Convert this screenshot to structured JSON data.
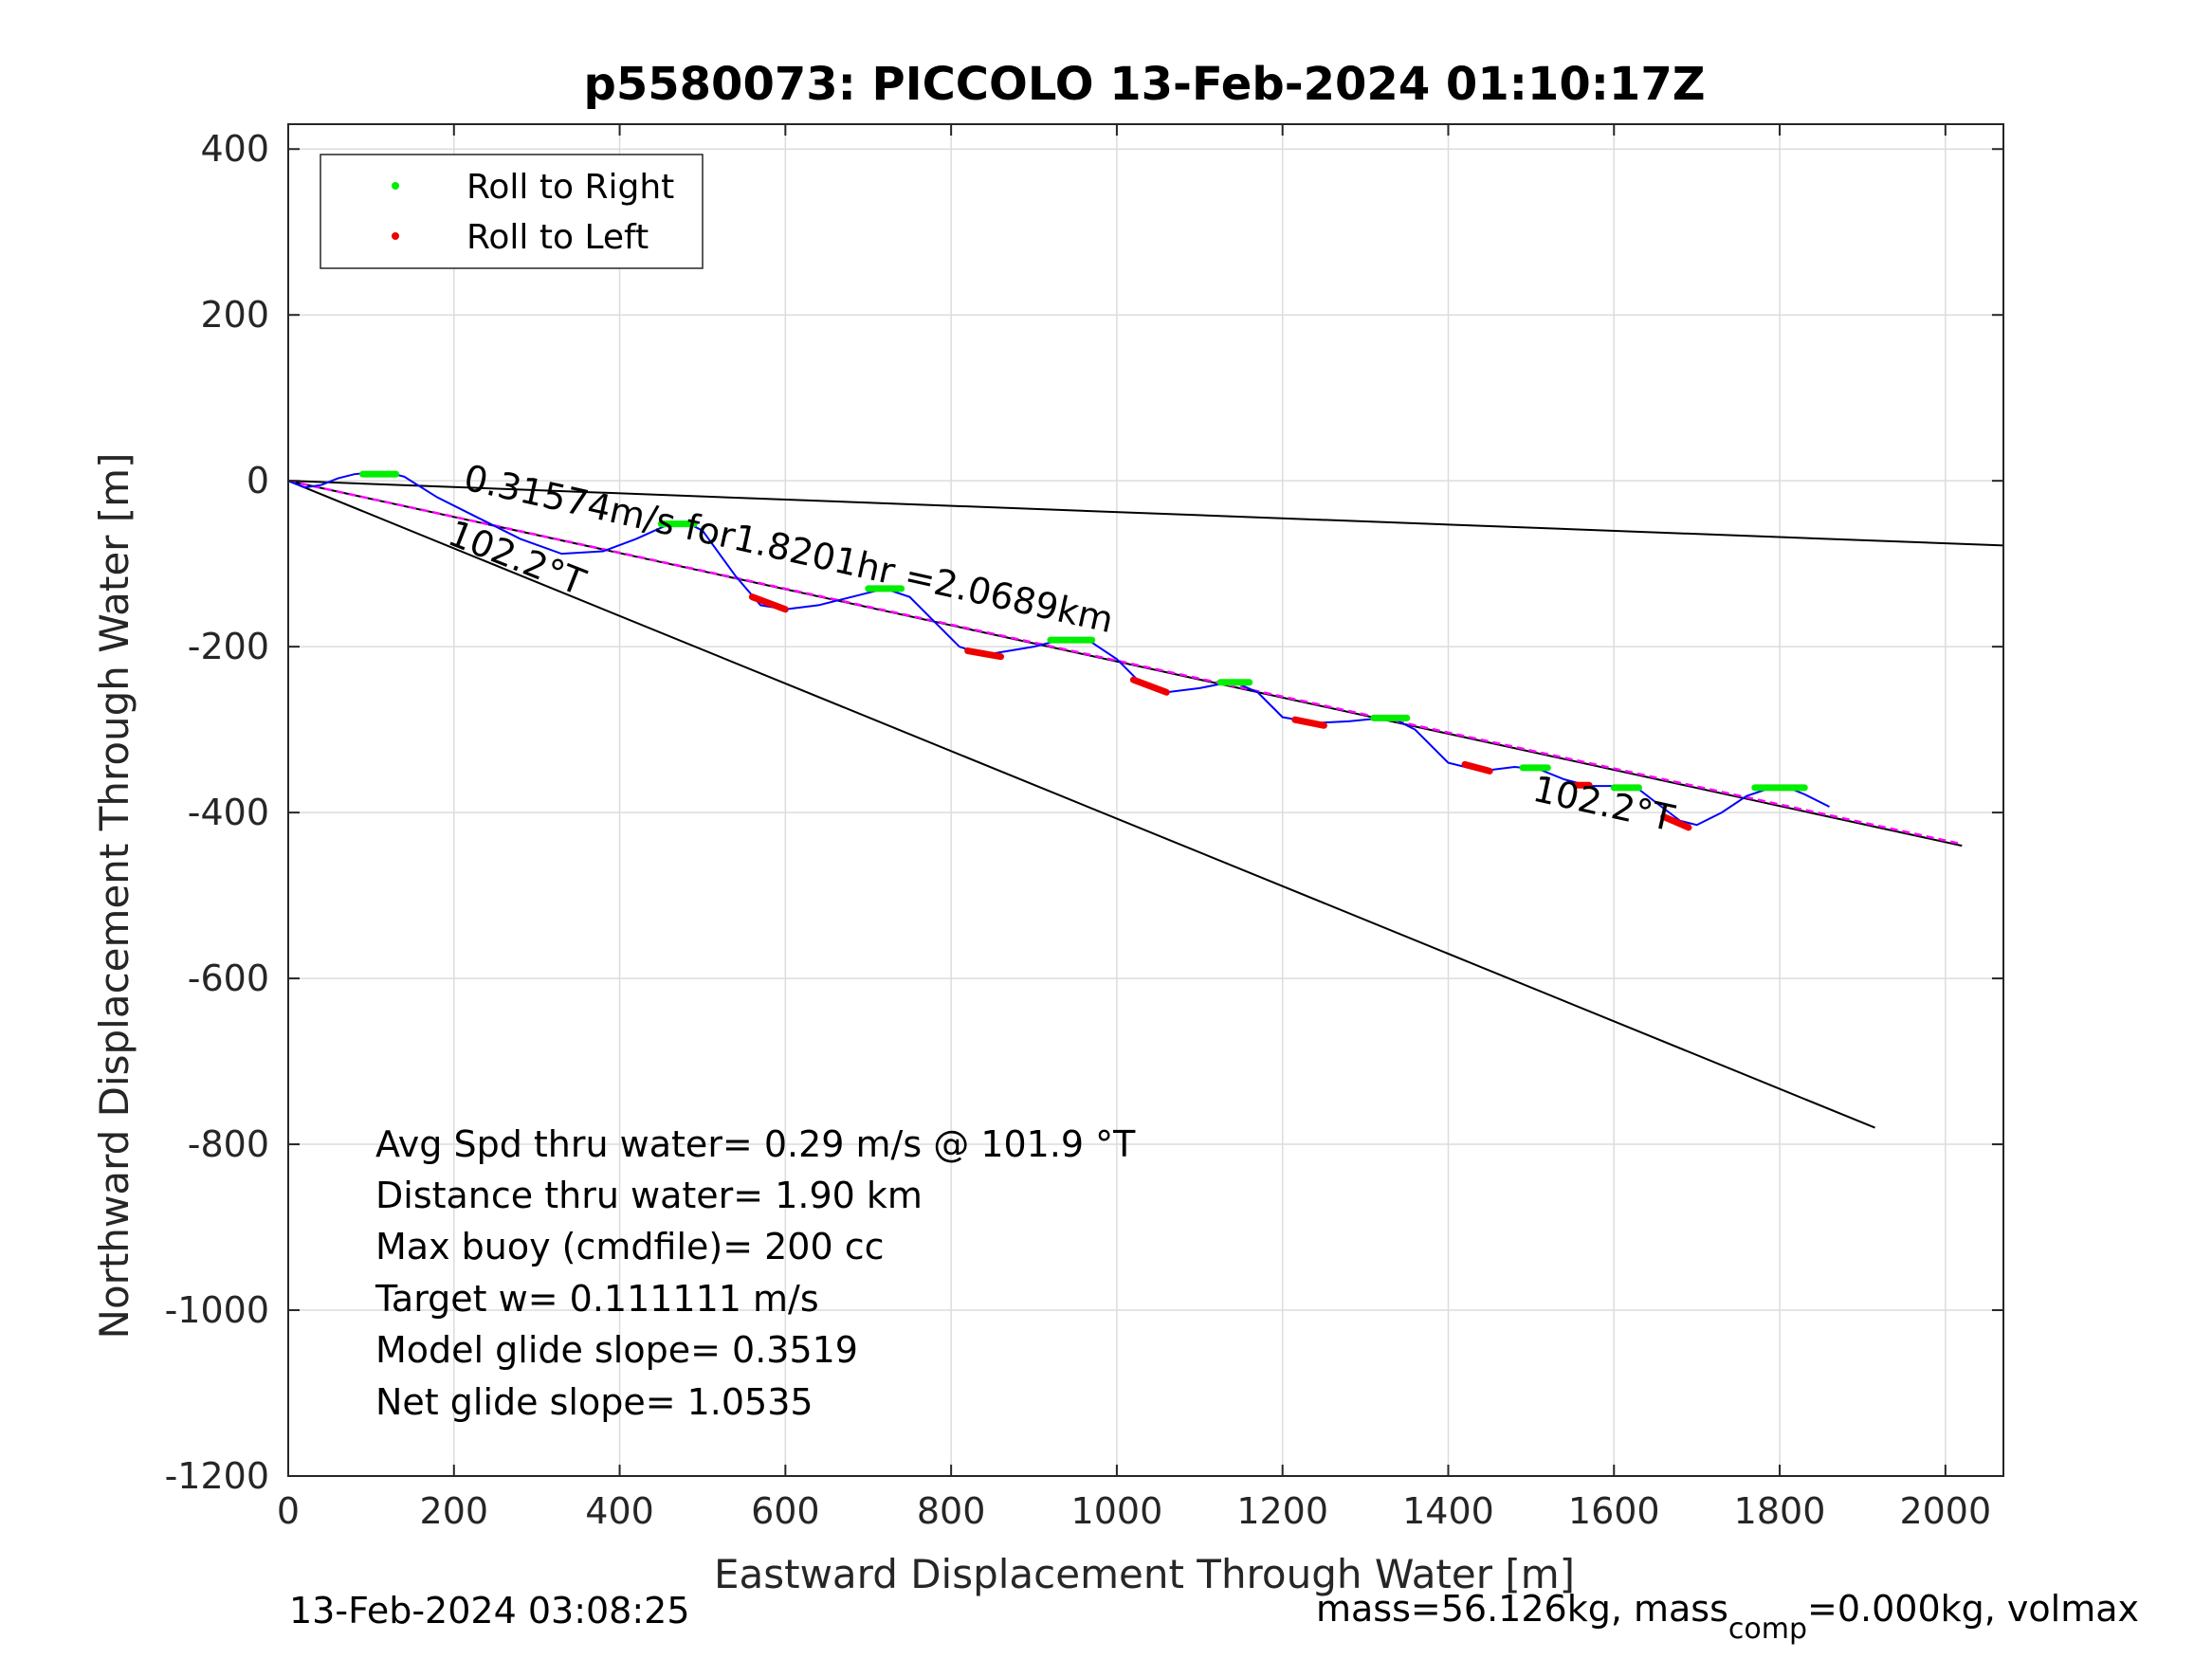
{
  "chart_data": {
    "type": "line",
    "title": "p5580073: PICCOLO 13-Feb-2024 01:10:17Z",
    "xlabel": "Eastward Displacement Through Water [m]",
    "ylabel": "Northward Displacement Through Water [m]",
    "xlim": [
      0,
      2070
    ],
    "ylim": [
      -1200,
      430
    ],
    "xticks": [
      0,
      200,
      400,
      600,
      800,
      1000,
      1200,
      1400,
      1600,
      1800,
      2000
    ],
    "yticks": [
      400,
      200,
      0,
      -200,
      -400,
      -600,
      -800,
      -1000,
      -1200
    ],
    "xtick_labels": [
      "0",
      "200",
      "400",
      "600",
      "800",
      "1000",
      "1200",
      "1400",
      "1600",
      "1800",
      "2000"
    ],
    "ytick_labels": [
      "400",
      "200",
      "0",
      "-200",
      "-400",
      "-600",
      "-800",
      "-1000",
      "-1200"
    ],
    "grid": true,
    "legend": {
      "position": "top-left",
      "entries": [
        {
          "label": "Roll to Right",
          "color": "#00ee00"
        },
        {
          "label": "Roll to Left",
          "color": "#ee0000"
        }
      ]
    },
    "series": [
      {
        "name": "track",
        "color": "#0000ff",
        "x": [
          0,
          20,
          40,
          60,
          80,
          100,
          120,
          140,
          180,
          230,
          280,
          330,
          380,
          420,
          460,
          480,
          500,
          540,
          570,
          600,
          640,
          680,
          720,
          750,
          780,
          810,
          840,
          870,
          900,
          940,
          970,
          1000,
          1030,
          1060,
          1100,
          1140,
          1170,
          1200,
          1240,
          1280,
          1330,
          1360,
          1400,
          1440,
          1480,
          1510,
          1540,
          1570,
          1600,
          1630,
          1660,
          1680,
          1700,
          1730,
          1760,
          1790,
          1810,
          1830,
          1860
        ],
        "y": [
          0,
          -8,
          -5,
          3,
          8,
          10,
          10,
          5,
          -20,
          -45,
          -70,
          -88,
          -85,
          -70,
          -52,
          -50,
          -60,
          -115,
          -150,
          -155,
          -150,
          -140,
          -130,
          -140,
          -170,
          -200,
          -210,
          -205,
          -200,
          -190,
          -195,
          -215,
          -245,
          -255,
          -250,
          -242,
          -255,
          -285,
          -292,
          -290,
          -285,
          -300,
          -340,
          -350,
          -345,
          -348,
          -360,
          -368,
          -368,
          -372,
          -395,
          -410,
          -415,
          -400,
          -380,
          -370,
          -370,
          -378,
          -393
        ]
      }
    ],
    "roll_right_segments": [
      {
        "x": [
          90,
          130
        ],
        "y": [
          8,
          8
        ]
      },
      {
        "x": [
          450,
          490
        ],
        "y": [
          -52,
          -52
        ]
      },
      {
        "x": [
          700,
          740
        ],
        "y": [
          -130,
          -130
        ]
      },
      {
        "x": [
          920,
          970
        ],
        "y": [
          -192,
          -192
        ]
      },
      {
        "x": [
          1125,
          1160
        ],
        "y": [
          -243,
          -243
        ]
      },
      {
        "x": [
          1310,
          1350
        ],
        "y": [
          -286,
          -286
        ]
      },
      {
        "x": [
          1490,
          1520
        ],
        "y": [
          -346,
          -346
        ]
      },
      {
        "x": [
          1600,
          1630
        ],
        "y": [
          -370,
          -370
        ]
      },
      {
        "x": [
          1770,
          1830
        ],
        "y": [
          -370,
          -370
        ]
      }
    ],
    "roll_left_segments": [
      {
        "x": [
          560,
          600
        ],
        "y": [
          -140,
          -155
        ]
      },
      {
        "x": [
          820,
          860
        ],
        "y": [
          -205,
          -212
        ]
      },
      {
        "x": [
          1020,
          1060
        ],
        "y": [
          -240,
          -255
        ]
      },
      {
        "x": [
          1215,
          1250
        ],
        "y": [
          -288,
          -295
        ]
      },
      {
        "x": [
          1420,
          1450
        ],
        "y": [
          -342,
          -350
        ]
      },
      {
        "x": [
          1555,
          1570
        ],
        "y": [
          -367,
          -367
        ]
      },
      {
        "x": [
          1660,
          1690
        ],
        "y": [
          -405,
          -418
        ]
      }
    ],
    "reference_lines": [
      {
        "name": "upper bound",
        "color": "#000000",
        "x": [
          0,
          2070
        ],
        "y": [
          0,
          -78
        ]
      },
      {
        "name": "mean heading",
        "color": "#000000",
        "x": [
          0,
          2020
        ],
        "y": [
          0,
          -440
        ]
      },
      {
        "name": "lower bound",
        "color": "#000000",
        "x": [
          0,
          1915
        ],
        "y": [
          0,
          -780
        ]
      },
      {
        "name": "magenta dashed",
        "color": "#ff00ff",
        "x": [
          0,
          2020
        ],
        "y": [
          0,
          -438
        ]
      }
    ],
    "annotations": [
      {
        "text": "0.31574m/s for1.8201hr =2.0689km",
        "x": 210,
        "y": -10
      },
      {
        "text": "102.2°T",
        "x": 190,
        "y": -75
      },
      {
        "text": "102.2°T",
        "x": 1500,
        "y": -385
      }
    ],
    "stats": [
      "Avg Spd thru water=  0.29 m/s @ 101.9 °T",
      "Distance thru water=  1.90 km",
      "Max buoy (cmdfile)= 200 cc",
      "Target w= 0.111111 m/s",
      "Model glide slope= 0.3519",
      "Net glide slope= 1.0535"
    ],
    "footer_left": "13-Feb-2024 03:08:25",
    "footer_right": {
      "part1": "mass=56.126kg, mass",
      "sub": "comp",
      "part2": "=0.000kg, volmax"
    }
  }
}
